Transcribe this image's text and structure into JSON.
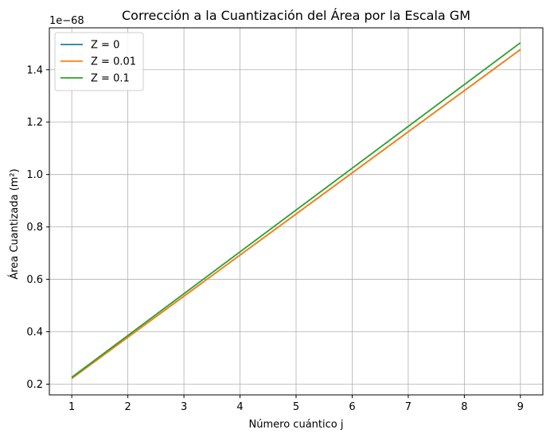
{
  "chart_data": {
    "type": "line",
    "title": "Corrección a la Cuantización del Área por la Escala GM",
    "xlabel": "Número cuántico j",
    "ylabel": "Área Cuantizada (m²)",
    "y_offset_label": "1e−68",
    "xlim": [
      0.6,
      9.4
    ],
    "ylim": [
      0.159,
      1.56
    ],
    "x_ticks": [
      1,
      2,
      3,
      4,
      5,
      6,
      7,
      8,
      9
    ],
    "y_ticks": [
      0.2,
      0.4,
      0.6,
      0.8,
      1.0,
      1.2,
      1.4
    ],
    "y_tick_labels": [
      "0.2",
      "0.4",
      "0.6",
      "0.8",
      "1.0",
      "1.2",
      "1.4"
    ],
    "grid": true,
    "legend_position": "top-left",
    "x": [
      1,
      9
    ],
    "series": [
      {
        "name": "Z = 0",
        "color": "#1f77b4",
        "values": [
          0.222,
          1.477
        ]
      },
      {
        "name": "Z = 0.01",
        "color": "#ff7f0e",
        "values": [
          0.222,
          1.477
        ]
      },
      {
        "name": "Z = 0.1",
        "color": "#2ca02c",
        "values": [
          0.226,
          1.503
        ]
      }
    ]
  }
}
